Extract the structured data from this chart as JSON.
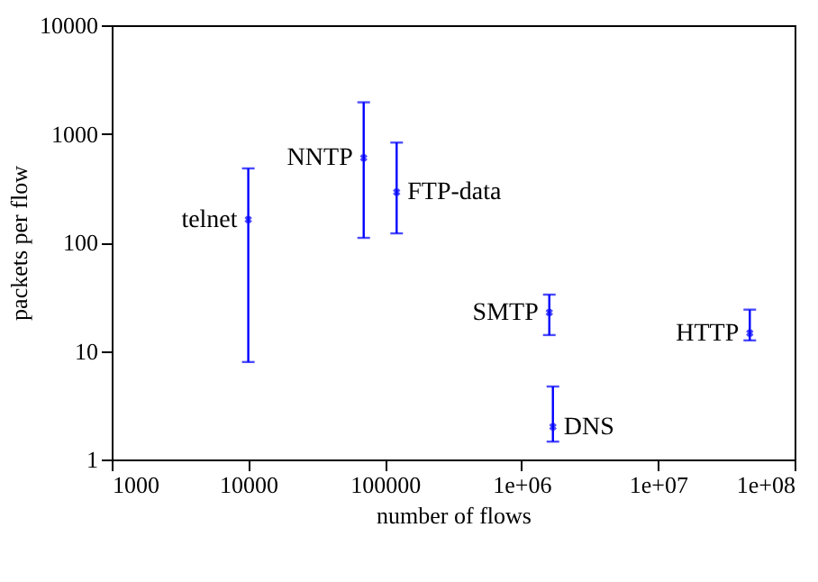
{
  "chart_data": {
    "type": "scatter",
    "xlabel": "number of flows",
    "ylabel": "packets per flow",
    "log": "xy",
    "grid": false,
    "marker": "cross",
    "x": [
      10000,
      70000,
      122000,
      1600000,
      1700000,
      47000000
    ],
    "series": [
      {
        "color": "#0000ff",
        "values": [
          162,
          600,
          290,
          22.6,
          2.0,
          14.6
        ],
        "errors": [
          [
            7.9,
            480
          ],
          [
            110,
            1950
          ],
          [
            121,
            830
          ],
          [
            14,
            33
          ],
          [
            1.46,
            4.7
          ],
          [
            12.5,
            24
          ]
        ]
      }
    ],
    "annotations": [
      {
        "text": "telnet",
        "x": 10000,
        "y": 162
      },
      {
        "text": "NNTP",
        "x": 70000,
        "y": 600
      },
      {
        "text": "FTP-data",
        "x": 122000,
        "y": 290
      },
      {
        "text": "SMTP",
        "x": 1600000,
        "y": 22.6
      },
      {
        "text": "DNS",
        "x": 1700000,
        "y": 2.0
      },
      {
        "text": "HTTP",
        "x": 47000000,
        "y": 14.6
      }
    ],
    "xlim": [
      1000,
      100000000
    ],
    "xticks": [
      1000,
      10000,
      100000,
      {
        "value": 1000000,
        "label": "1e+06"
      },
      {
        "value": 10000000,
        "label": "1e+07"
      },
      {
        "value": 100000000,
        "label": "1e+08"
      }
    ],
    "ylim": [
      1,
      10000
    ],
    "yticks": [
      1,
      10,
      100,
      1000,
      10000
    ]
  }
}
